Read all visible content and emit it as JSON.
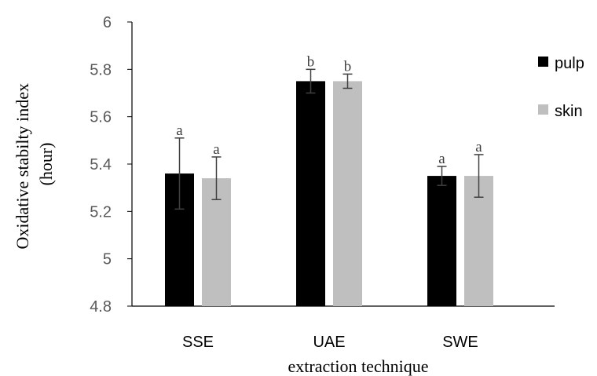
{
  "chart_data": {
    "type": "bar",
    "xlabel": "extraction technique",
    "ylabel_lines": [
      "Oxidative stabilty index",
      "(hour)"
    ],
    "ylim": [
      4.8,
      6.0
    ],
    "yticks": [
      4.8,
      5.0,
      5.2,
      5.4,
      5.6,
      5.8,
      6.0
    ],
    "ytick_labels": [
      "4.8",
      "5",
      "5.2",
      "5.4",
      "5.6",
      "5.8",
      "6"
    ],
    "categories": [
      "SSE",
      "UAE",
      "SWE"
    ],
    "grid": false,
    "legend_position": "right",
    "series": [
      {
        "name": "pulp",
        "color": "#000000",
        "values": [
          5.36,
          5.75,
          5.35
        ],
        "errors": [
          0.15,
          0.05,
          0.04
        ],
        "labels": [
          "a",
          "b",
          "a"
        ]
      },
      {
        "name": "skin",
        "color": "#bfbfbf",
        "values": [
          5.34,
          5.75,
          5.35
        ],
        "errors": [
          0.09,
          0.03,
          0.09
        ],
        "labels": [
          "a",
          "b",
          "a"
        ]
      }
    ]
  }
}
